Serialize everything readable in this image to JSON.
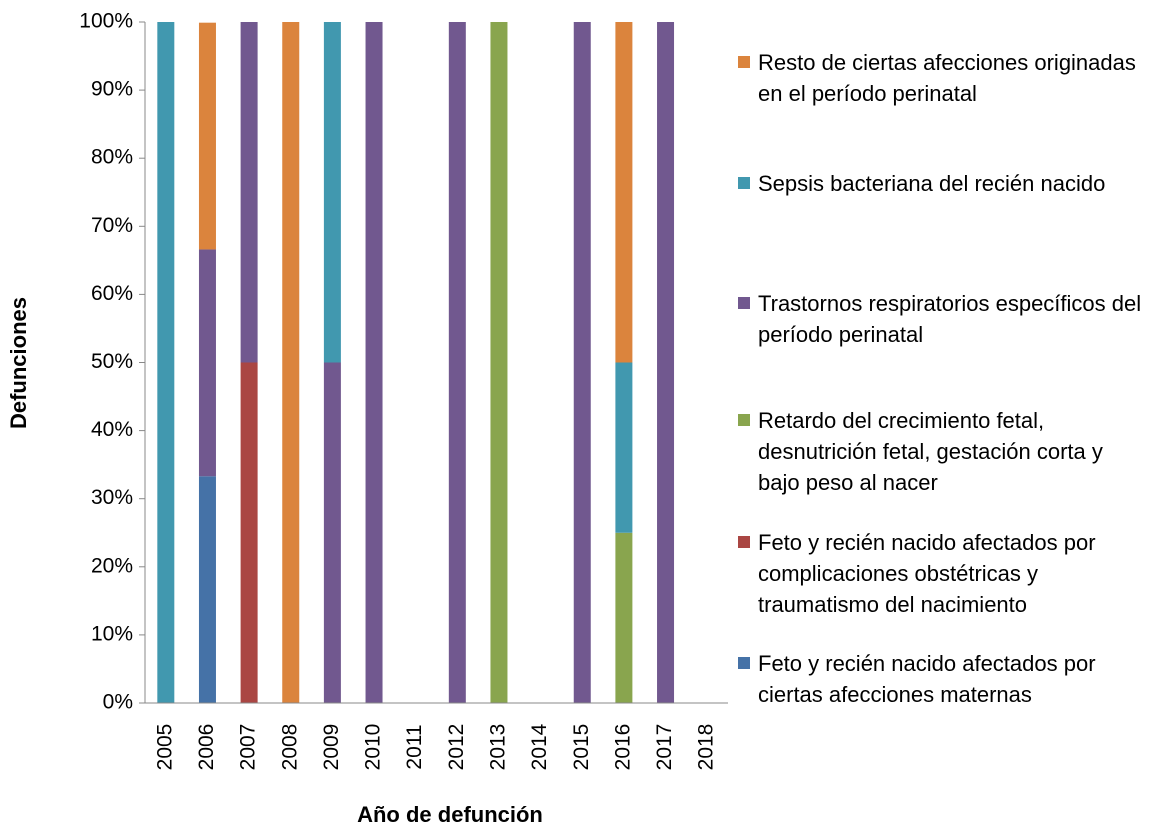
{
  "chart_data": {
    "type": "stacked_bar",
    "x_label": "Año de defunción",
    "y_label": "Defunciones",
    "categories": [
      "2005",
      "2006",
      "2007",
      "2008",
      "2009",
      "2010",
      "2011",
      "2012",
      "2013",
      "2014",
      "2015",
      "2016",
      "2017",
      "2018"
    ],
    "series": [
      {
        "name": "Feto y recién nacido afectados por ciertas afecciones maternas",
        "color": "#4572a7",
        "values": [
          0,
          33.3,
          0,
          0,
          0,
          0,
          0,
          0,
          0,
          0,
          0,
          0,
          0,
          0
        ]
      },
      {
        "name": "Feto y recién nacido afectados por complicaciones obstétricas y traumatismo del nacimiento",
        "color": "#aa4643",
        "values": [
          0,
          0,
          50,
          0,
          0,
          0,
          0,
          0,
          0,
          0,
          0,
          0,
          0,
          0
        ]
      },
      {
        "name": "Retardo del crecimiento fetal, desnutrición fetal, gestación corta y bajo peso al nacer",
        "color": "#89a54e",
        "values": [
          0,
          0,
          0,
          0,
          0,
          0,
          0,
          0,
          100,
          0,
          0,
          25,
          0,
          0
        ]
      },
      {
        "name": "Trastornos respiratorios específicos del período perinatal",
        "color": "#71588f",
        "values": [
          0,
          33.3,
          50,
          0,
          50,
          100,
          0,
          100,
          0,
          0,
          100,
          0,
          100,
          0
        ]
      },
      {
        "name": "Sepsis bacteriana del recién nacido",
        "color": "#4198af",
        "values": [
          100,
          0,
          0,
          0,
          50,
          0,
          0,
          0,
          0,
          0,
          0,
          25,
          0,
          0
        ]
      },
      {
        "name": "Resto de ciertas afecciones originadas en el período perinatal",
        "color": "#db843d",
        "values": [
          0,
          33.3,
          0,
          100,
          0,
          0,
          0,
          0,
          0,
          0,
          0,
          50,
          0,
          0
        ]
      }
    ],
    "ylim": [
      0,
      100
    ],
    "yticks": [
      {
        "value": 0,
        "label": "0%"
      },
      {
        "value": 10,
        "label": "10%"
      },
      {
        "value": 20,
        "label": "20%"
      },
      {
        "value": 30,
        "label": "30%"
      },
      {
        "value": 40,
        "label": "40%"
      },
      {
        "value": 50,
        "label": "50%"
      },
      {
        "value": 60,
        "label": "60%"
      },
      {
        "value": 70,
        "label": "70%"
      },
      {
        "value": 80,
        "label": "80%"
      },
      {
        "value": 90,
        "label": "90%"
      },
      {
        "value": 100,
        "label": "100%"
      }
    ],
    "grid": false,
    "legend": "right"
  }
}
